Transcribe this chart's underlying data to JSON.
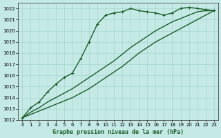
{
  "xlabel": "Graphe pression niveau de la mer (hPa)",
  "ylim": [
    1012,
    1022.5
  ],
  "xlim": [
    -0.5,
    23.5
  ],
  "yticks": [
    1012,
    1013,
    1014,
    1015,
    1016,
    1017,
    1018,
    1019,
    1020,
    1021,
    1022
  ],
  "xticks": [
    0,
    1,
    2,
    3,
    4,
    5,
    6,
    7,
    8,
    9,
    10,
    11,
    12,
    13,
    14,
    15,
    16,
    17,
    18,
    19,
    20,
    21,
    22,
    23
  ],
  "bg_color": "#c5eae6",
  "grid_color": "#a8d5d0",
  "line_color": "#1a5c28",
  "series1": {
    "x": [
      0,
      1,
      2,
      3,
      4,
      5,
      6,
      7,
      8,
      9,
      10,
      11,
      12,
      13,
      14,
      15,
      16,
      17,
      18,
      19,
      20,
      21,
      22,
      23
    ],
    "y": [
      1012.2,
      1013.1,
      1013.6,
      1014.5,
      1015.2,
      1015.8,
      1016.2,
      1017.5,
      1019.0,
      1020.6,
      1021.4,
      1021.6,
      1021.7,
      1022.0,
      1021.8,
      1021.7,
      1021.6,
      1021.4,
      1021.6,
      1022.0,
      1022.1,
      1022.0,
      1021.9,
      1021.8
    ],
    "linewidth": 1.0
  },
  "series2": {
    "x": [
      0,
      1,
      2,
      3,
      4,
      5,
      6,
      7,
      8,
      9,
      10,
      11,
      12,
      13,
      14,
      15,
      16,
      17,
      18,
      19,
      20,
      21,
      22,
      23
    ],
    "y": [
      1012.2,
      1012.5,
      1012.8,
      1013.1,
      1013.4,
      1013.7,
      1014.0,
      1014.4,
      1014.8,
      1015.3,
      1015.8,
      1016.3,
      1016.8,
      1017.4,
      1018.0,
      1018.5,
      1019.0,
      1019.4,
      1019.8,
      1020.2,
      1020.6,
      1021.0,
      1021.4,
      1021.8
    ],
    "linewidth": 1.0
  },
  "series3": {
    "x": [
      0,
      1,
      2,
      3,
      4,
      5,
      6,
      7,
      8,
      9,
      10,
      11,
      12,
      13,
      14,
      15,
      16,
      17,
      18,
      19,
      20,
      21,
      22,
      23
    ],
    "y": [
      1012.2,
      1012.7,
      1013.1,
      1013.6,
      1014.0,
      1014.4,
      1014.8,
      1015.3,
      1015.8,
      1016.3,
      1016.8,
      1017.3,
      1017.9,
      1018.5,
      1019.0,
      1019.5,
      1020.0,
      1020.4,
      1020.8,
      1021.1,
      1021.4,
      1021.7,
      1021.8,
      1021.8
    ],
    "linewidth": 1.0
  }
}
